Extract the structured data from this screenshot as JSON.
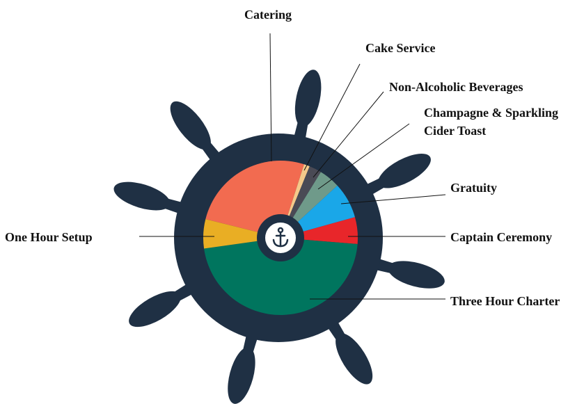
{
  "chart_data": {
    "type": "pie",
    "categories": [
      "Catering",
      "Cake Service",
      "Non-Alcoholic Beverages",
      "Champagne & Sparkling Cider Toast",
      "Gratuity",
      "Captain Ceremony",
      "Three Hour Charter",
      "One Hour Setup"
    ],
    "values": [
      26,
      1.2,
      2.6,
      4.4,
      7.5,
      5.6,
      46.4,
      6.1
    ],
    "colors": [
      "#f26b50",
      "#f5c98a",
      "#4a4a55",
      "#6f9a8a",
      "#1aa7e8",
      "#e8262a",
      "#00755e",
      "#e9ae24"
    ]
  }
}
